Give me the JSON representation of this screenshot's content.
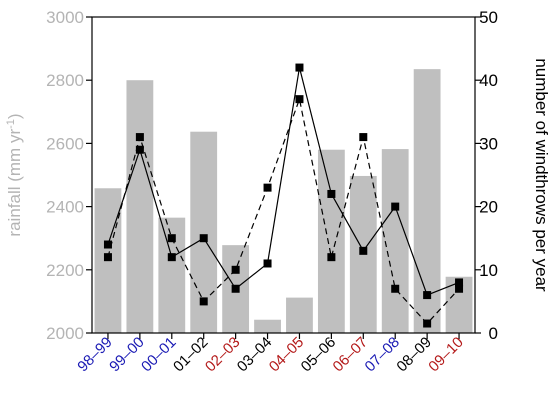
{
  "chart_data": {
    "type": "bar",
    "categories": [
      "98–99",
      "99–00",
      "00–01",
      "01–02",
      "02–03",
      "03–04",
      "04–05",
      "05–06",
      "06–07",
      "07–08",
      "08–09",
      "09–10"
    ],
    "category_colors": [
      "#1a1ab4",
      "#1a1ab4",
      "#1a1ab4",
      "#000000",
      "#b41a1a",
      "#000000",
      "#b41a1a",
      "#000000",
      "#b41a1a",
      "#1a1ab4",
      "#000000",
      "#b41a1a"
    ],
    "left_axis": {
      "label_base": "rainfall (mm yr",
      "label_sup": "-1",
      "label_end": ")",
      "ylim": [
        2000,
        3000
      ],
      "ticks": [
        2000,
        2200,
        2400,
        2600,
        2800,
        3000
      ],
      "color": "#b4b4b4"
    },
    "right_axis": {
      "label": "number of windthrows per year",
      "ylim": [
        0,
        50
      ],
      "ticks": [
        0,
        10,
        20,
        30,
        40,
        50
      ],
      "color": "#000000"
    },
    "series": [
      {
        "kind": "bar",
        "axis": "left",
        "color": "#bfbfbf",
        "values": [
          2458,
          2800,
          2365,
          2637,
          2278,
          2042,
          2112,
          2580,
          2497,
          2582,
          2835,
          2178
        ]
      },
      {
        "kind": "line",
        "axis": "right",
        "line_style": "solid",
        "color": "#000000",
        "values": [
          14,
          29,
          12,
          15,
          7,
          11,
          42,
          22,
          13,
          20,
          6,
          8
        ]
      },
      {
        "kind": "line",
        "axis": "right",
        "line_style": "dashed",
        "color": "#000000",
        "values": [
          12,
          31,
          15,
          5,
          10,
          23,
          37,
          12,
          31,
          7,
          1.5,
          7
        ]
      }
    ],
    "grid": false,
    "legend": "none"
  }
}
